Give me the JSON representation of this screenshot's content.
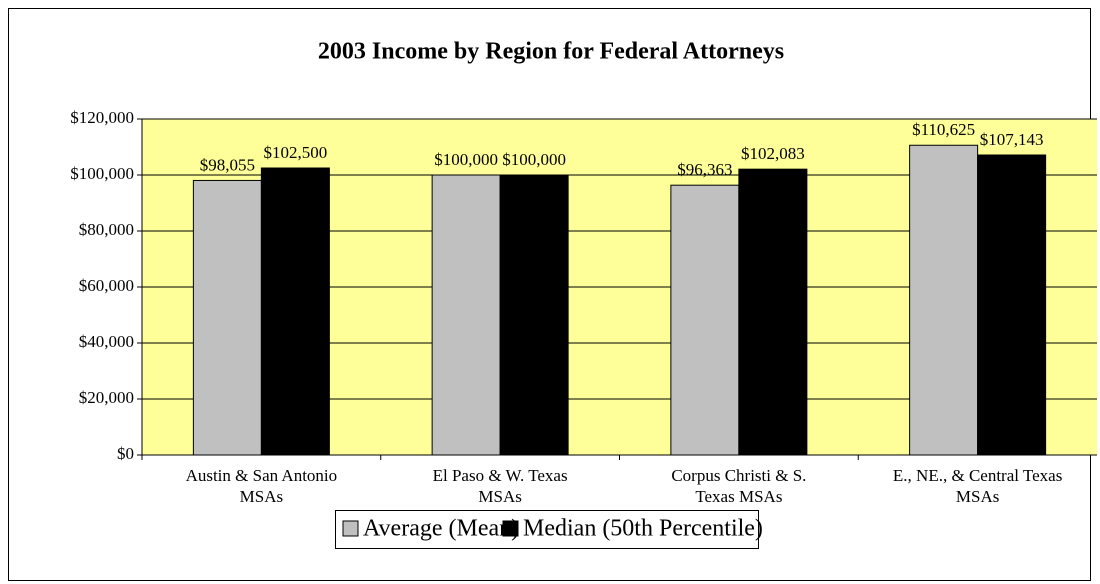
{
  "chart_data": {
    "type": "bar",
    "title": "2003 Income by Region for Federal Attorneys",
    "categories": [
      "Austin & San Antonio\nMSAs",
      "El Paso & W. Texas\nMSAs",
      "Corpus Christi & S.\nTexas MSAs",
      "E., NE., & Central Texas\nMSAs"
    ],
    "series": [
      {
        "name": "Average (Mean)",
        "color": "#c0c0c0",
        "values": [
          98055,
          100000,
          96363,
          110625
        ],
        "value_labels": [
          "$98,055",
          "$100,000",
          "$96,363",
          "$110,625"
        ]
      },
      {
        "name": "Median (50th Percentile)",
        "color": "#000000",
        "values": [
          102500,
          100000,
          102083,
          107143
        ],
        "value_labels": [
          "$102,500",
          "$100,000",
          "$102,083",
          "$107,143"
        ]
      }
    ],
    "ylim": [
      0,
      120000
    ],
    "yticks": [
      {
        "value": 0,
        "label": "$0"
      },
      {
        "value": 20000,
        "label": "$20,000"
      },
      {
        "value": 40000,
        "label": "$40,000"
      },
      {
        "value": 60000,
        "label": "$60,000"
      },
      {
        "value": 80000,
        "label": "$80,000"
      },
      {
        "value": 100000,
        "label": "$100,000"
      },
      {
        "value": 120000,
        "label": "$120,000"
      }
    ],
    "grid": true,
    "legend": "bottom",
    "plot_background": "#ffff99"
  }
}
